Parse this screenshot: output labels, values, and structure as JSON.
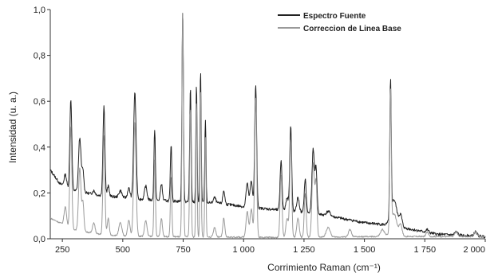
{
  "chart_data": {
    "type": "line",
    "title": "",
    "xlabel": "Corrimiento Raman (cm⁻¹)",
    "ylabel": "Intensidad (u. a.)",
    "xlim": [
      200,
      2000
    ],
    "ylim": [
      0,
      1.0
    ],
    "grid": false,
    "legend_position": "top-right",
    "x_ticks": [
      250,
      500,
      750,
      1000,
      1250,
      1500,
      1750,
      2000
    ],
    "x_tick_labels": [
      "250",
      "500",
      "750",
      "1 000",
      "1 250",
      "1 500",
      "1 750",
      "2 000"
    ],
    "y_ticks": [
      0,
      0.2,
      0.4,
      0.6,
      0.8,
      1.0
    ],
    "y_tick_labels": [
      "0,0",
      "0,2",
      "0,4",
      "0,6",
      "0,8",
      "1,0"
    ],
    "series": [
      {
        "name": "Espectro Fuente",
        "color": "#222222",
        "baseline": [
          [
            200,
            0.3
          ],
          [
            240,
            0.24
          ],
          [
            300,
            0.21
          ],
          [
            400,
            0.19
          ],
          [
            500,
            0.18
          ],
          [
            600,
            0.17
          ],
          [
            700,
            0.165
          ],
          [
            800,
            0.16
          ],
          [
            900,
            0.155
          ],
          [
            1000,
            0.14
          ],
          [
            1100,
            0.13
          ],
          [
            1200,
            0.12
          ],
          [
            1300,
            0.11
          ],
          [
            1400,
            0.09
          ],
          [
            1500,
            0.07
          ],
          [
            1600,
            0.06
          ],
          [
            1700,
            0.04
          ],
          [
            1800,
            0.02
          ],
          [
            1900,
            0.015
          ],
          [
            2000,
            0.01
          ]
        ],
        "peaks": [
          [
            262,
            0.28,
            5
          ],
          [
            285,
            0.61,
            4
          ],
          [
            322,
            0.44,
            5
          ],
          [
            335,
            0.3,
            4
          ],
          [
            380,
            0.21,
            5
          ],
          [
            422,
            0.58,
            4
          ],
          [
            440,
            0.23,
            4
          ],
          [
            490,
            0.21,
            6
          ],
          [
            525,
            0.22,
            5
          ],
          [
            550,
            0.64,
            5
          ],
          [
            595,
            0.23,
            5
          ],
          [
            632,
            0.47,
            3
          ],
          [
            660,
            0.24,
            4
          ],
          [
            700,
            0.41,
            3
          ],
          [
            748,
            1.0,
            3
          ],
          [
            780,
            0.66,
            3
          ],
          [
            805,
            0.67,
            2.5
          ],
          [
            822,
            0.73,
            2.5
          ],
          [
            842,
            0.52,
            2.5
          ],
          [
            880,
            0.18,
            5
          ],
          [
            918,
            0.21,
            4
          ],
          [
            1015,
            0.24,
            5
          ],
          [
            1032,
            0.25,
            5
          ],
          [
            1050,
            0.67,
            4
          ],
          [
            1155,
            0.34,
            4
          ],
          [
            1180,
            0.18,
            5
          ],
          [
            1195,
            0.49,
            4
          ],
          [
            1225,
            0.18,
            5
          ],
          [
            1255,
            0.26,
            4
          ],
          [
            1288,
            0.39,
            5
          ],
          [
            1300,
            0.3,
            4
          ],
          [
            1350,
            0.12,
            8
          ],
          [
            1440,
            0.08,
            6
          ],
          [
            1575,
            0.06,
            8
          ],
          [
            1608,
            0.64,
            3
          ],
          [
            1622,
            0.17,
            12
          ],
          [
            1650,
            0.1,
            6
          ],
          [
            1760,
            0.04,
            5
          ],
          [
            1880,
            0.03,
            6
          ],
          [
            1960,
            0.03,
            6
          ]
        ]
      },
      {
        "name": "Correccion de Linea Base",
        "color": "#9a9a9a",
        "baseline": [
          [
            200,
            0.09
          ],
          [
            300,
            0.04
          ],
          [
            400,
            0.02
          ],
          [
            500,
            0.012
          ],
          [
            800,
            0.008
          ],
          [
            1200,
            0.006
          ],
          [
            1600,
            0.01
          ],
          [
            2000,
            0.01
          ]
        ],
        "peaks": [
          [
            262,
            0.14,
            5
          ],
          [
            285,
            0.49,
            4
          ],
          [
            322,
            0.31,
            5
          ],
          [
            335,
            0.16,
            4
          ],
          [
            380,
            0.07,
            5
          ],
          [
            422,
            0.45,
            4
          ],
          [
            440,
            0.09,
            4
          ],
          [
            490,
            0.07,
            6
          ],
          [
            525,
            0.08,
            5
          ],
          [
            550,
            0.51,
            5
          ],
          [
            595,
            0.08,
            5
          ],
          [
            632,
            0.34,
            3
          ],
          [
            660,
            0.09,
            4
          ],
          [
            700,
            0.27,
            3
          ],
          [
            748,
            1.0,
            3
          ],
          [
            780,
            0.57,
            3
          ],
          [
            805,
            0.6,
            2.5
          ],
          [
            822,
            0.65,
            2.5
          ],
          [
            842,
            0.44,
            2.5
          ],
          [
            880,
            0.05,
            5
          ],
          [
            918,
            0.09,
            4
          ],
          [
            1015,
            0.12,
            5
          ],
          [
            1032,
            0.13,
            5
          ],
          [
            1050,
            0.62,
            4
          ],
          [
            1155,
            0.28,
            4
          ],
          [
            1180,
            0.09,
            5
          ],
          [
            1195,
            0.43,
            4
          ],
          [
            1225,
            0.09,
            5
          ],
          [
            1255,
            0.2,
            4
          ],
          [
            1288,
            0.33,
            5
          ],
          [
            1300,
            0.24,
            4
          ],
          [
            1350,
            0.05,
            8
          ],
          [
            1440,
            0.04,
            6
          ],
          [
            1575,
            0.04,
            8
          ],
          [
            1608,
            0.61,
            3
          ],
          [
            1622,
            0.11,
            12
          ],
          [
            1650,
            0.06,
            6
          ],
          [
            1760,
            0.03,
            5
          ],
          [
            1880,
            0.03,
            6
          ],
          [
            1960,
            0.03,
            6
          ]
        ]
      }
    ]
  }
}
